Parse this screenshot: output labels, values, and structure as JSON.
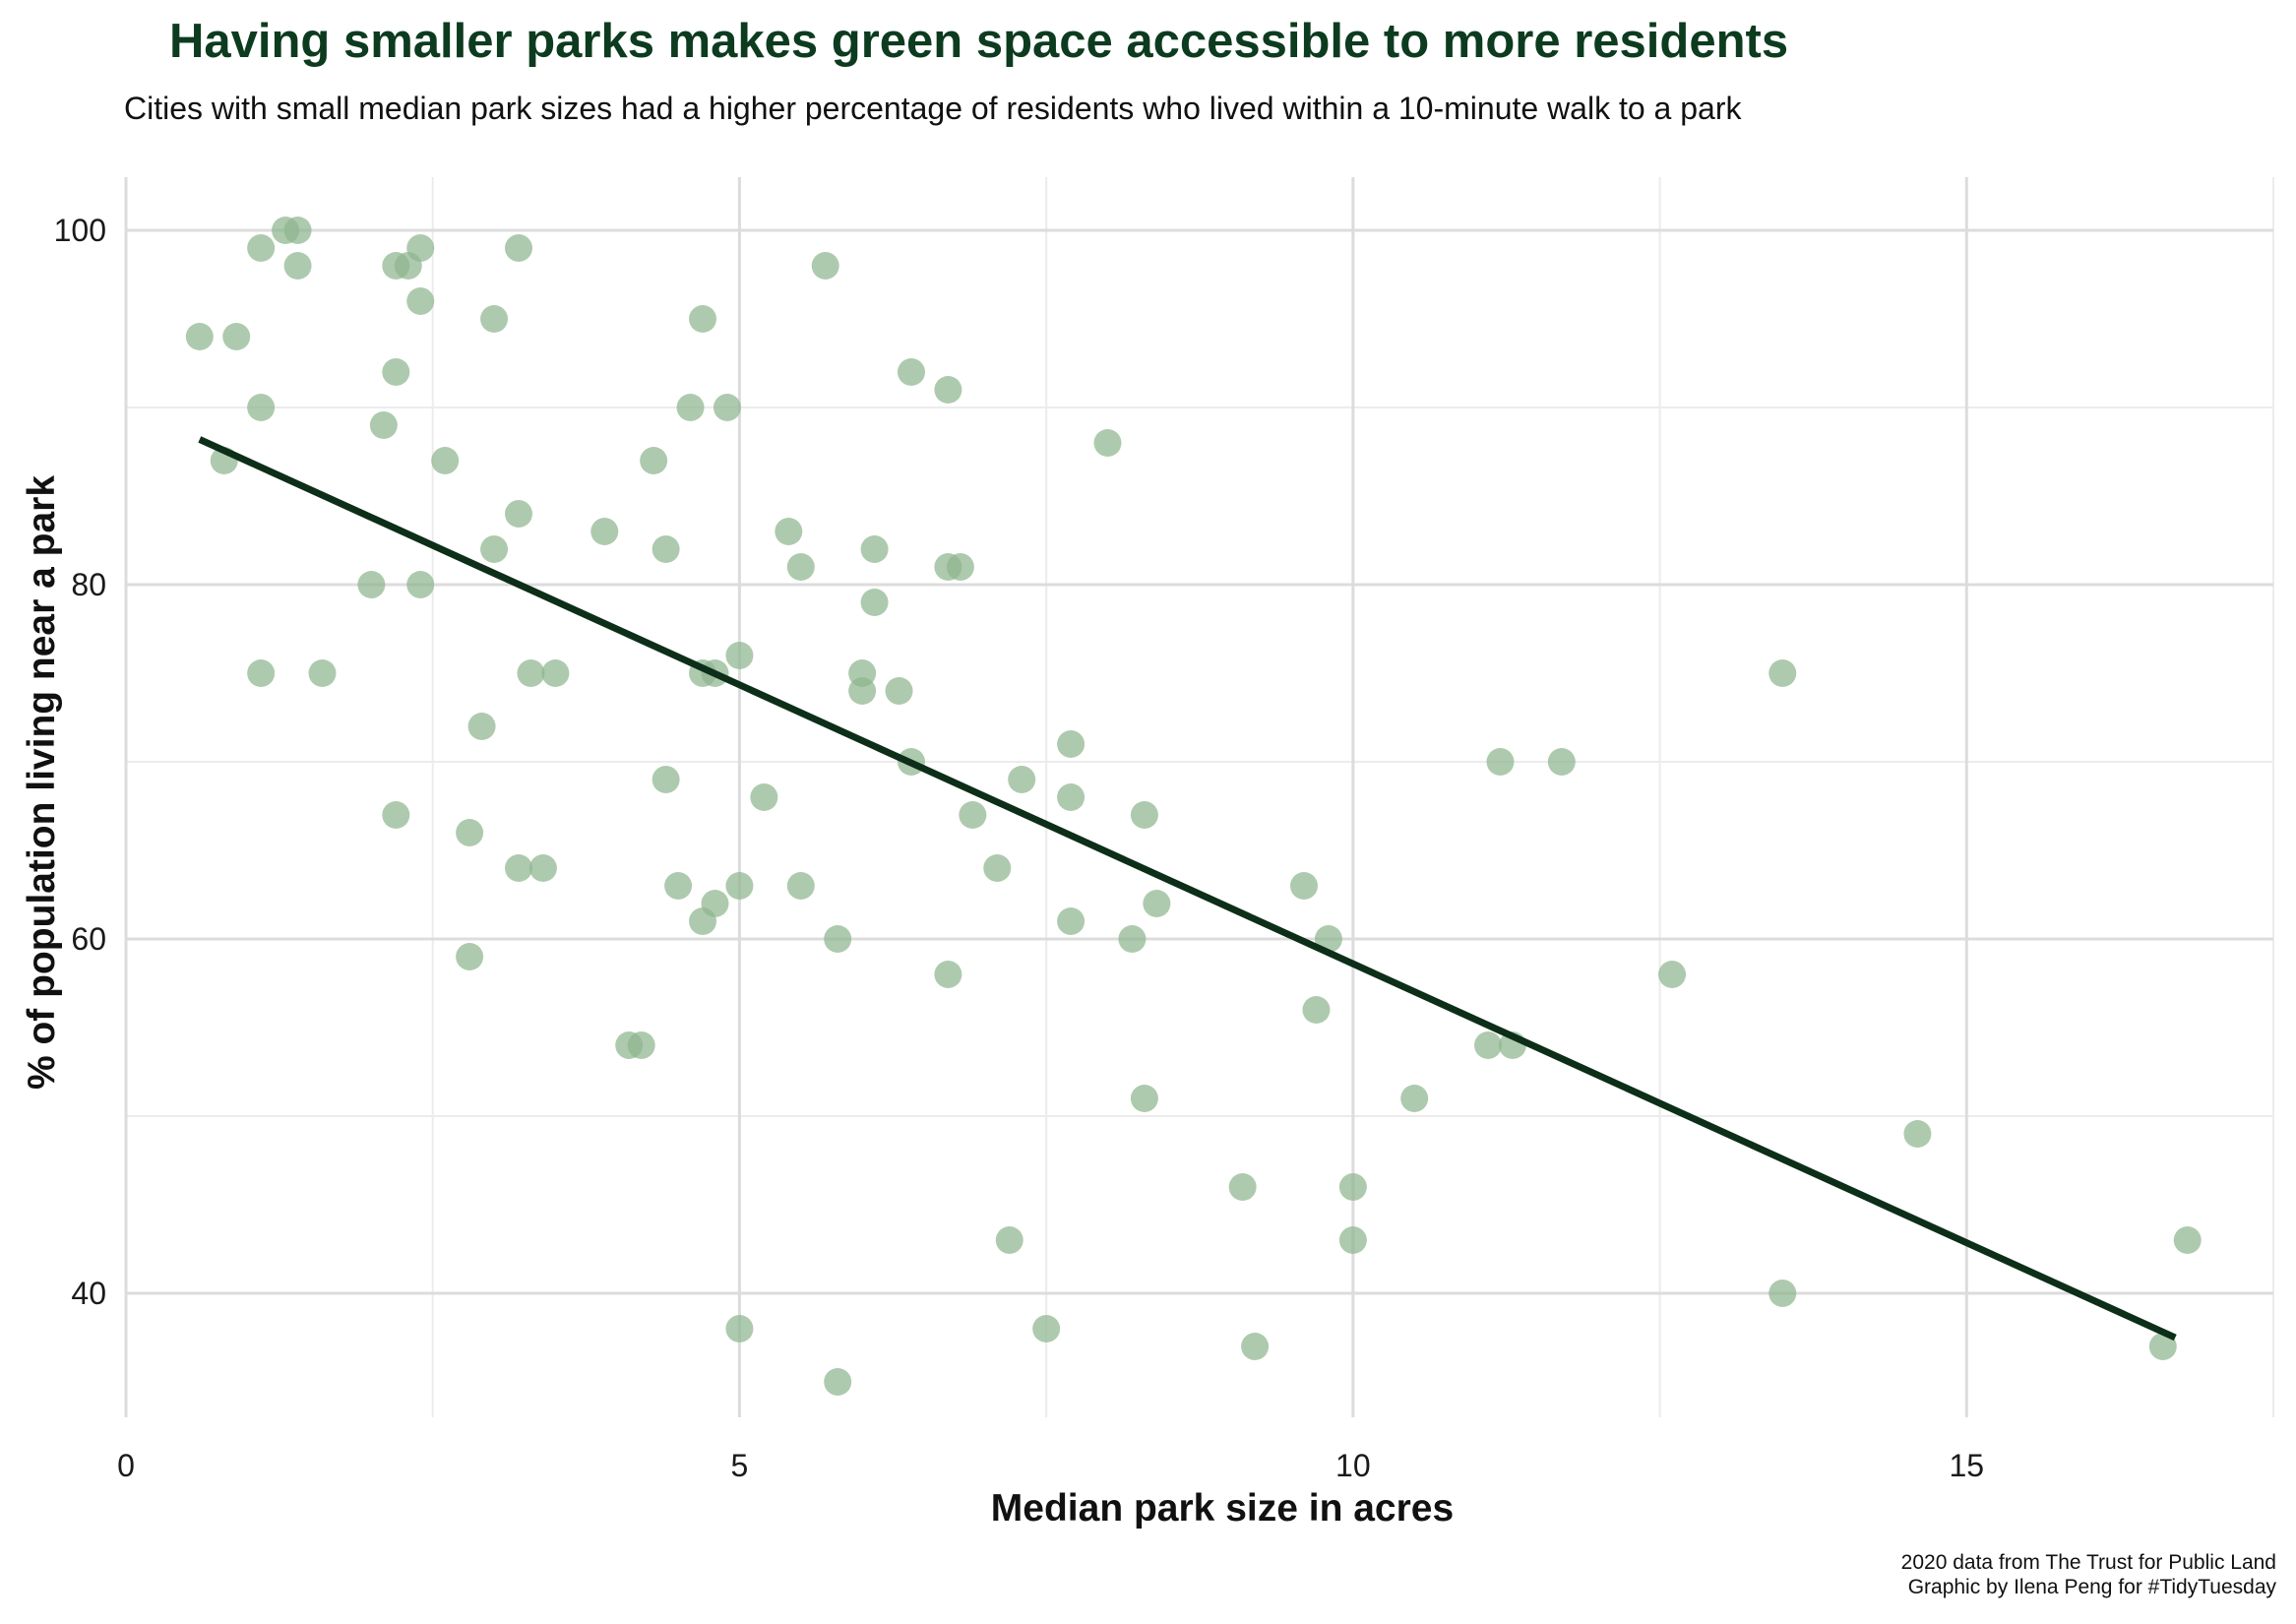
{
  "chart_data": {
    "type": "scatter",
    "title": "Having smaller parks makes green space accessible to more residents",
    "subtitle": "Cities with small median park sizes had a higher percentage of residents who lived within a 10-minute walk to a park",
    "xlabel": "Median park size in acres",
    "ylabel": "% of population living near a park",
    "xlim": [
      0,
      17.5
    ],
    "ylim": [
      33,
      103
    ],
    "x_ticks": [
      0,
      5,
      10,
      15
    ],
    "y_ticks": [
      40,
      60,
      80,
      100
    ],
    "x_tick_labels": [
      "0",
      "5",
      "10",
      "15"
    ],
    "y_tick_labels": [
      "40",
      "60",
      "80",
      "100"
    ],
    "grid": true,
    "point_color": "#8fb58f",
    "trend_color": "#0d2e18",
    "points": [
      [
        0.6,
        94
      ],
      [
        0.9,
        94
      ],
      [
        0.8,
        87
      ],
      [
        1.1,
        99
      ],
      [
        1.3,
        100
      ],
      [
        1.4,
        100
      ],
      [
        1.4,
        98
      ],
      [
        1.1,
        90
      ],
      [
        1.1,
        75
      ],
      [
        1.6,
        75
      ],
      [
        2.2,
        98
      ],
      [
        2.3,
        98
      ],
      [
        2.4,
        99
      ],
      [
        2.4,
        96
      ],
      [
        2.2,
        92
      ],
      [
        2.1,
        89
      ],
      [
        2.6,
        87
      ],
      [
        2.0,
        80
      ],
      [
        2.4,
        80
      ],
      [
        2.2,
        67
      ],
      [
        3.2,
        99
      ],
      [
        3.0,
        95
      ],
      [
        3.2,
        84
      ],
      [
        3.0,
        82
      ],
      [
        3.3,
        75
      ],
      [
        3.5,
        75
      ],
      [
        2.9,
        72
      ],
      [
        2.8,
        66
      ],
      [
        3.2,
        64
      ],
      [
        3.4,
        64
      ],
      [
        2.8,
        59
      ],
      [
        3.9,
        83
      ],
      [
        4.3,
        87
      ],
      [
        4.4,
        82
      ],
      [
        4.4,
        69
      ],
      [
        4.5,
        63
      ],
      [
        4.7,
        61
      ],
      [
        4.8,
        62
      ],
      [
        4.1,
        54
      ],
      [
        4.2,
        54
      ],
      [
        4.7,
        95
      ],
      [
        4.6,
        90
      ],
      [
        4.9,
        90
      ],
      [
        4.7,
        75
      ],
      [
        4.8,
        75
      ],
      [
        5.0,
        76
      ],
      [
        5.0,
        63
      ],
      [
        5.0,
        38
      ],
      [
        5.2,
        68
      ],
      [
        5.4,
        83
      ],
      [
        5.5,
        81
      ],
      [
        5.5,
        63
      ],
      [
        5.7,
        98
      ],
      [
        5.8,
        60
      ],
      [
        5.8,
        35
      ],
      [
        6.0,
        75
      ],
      [
        6.0,
        74
      ],
      [
        6.1,
        82
      ],
      [
        6.1,
        79
      ],
      [
        6.3,
        74
      ],
      [
        6.4,
        92
      ],
      [
        6.4,
        70
      ],
      [
        6.7,
        91
      ],
      [
        6.7,
        81
      ],
      [
        6.8,
        81
      ],
      [
        6.9,
        67
      ],
      [
        6.7,
        58
      ],
      [
        7.1,
        64
      ],
      [
        7.3,
        69
      ],
      [
        7.2,
        43
      ],
      [
        7.5,
        38
      ],
      [
        7.7,
        71
      ],
      [
        7.7,
        68
      ],
      [
        7.7,
        61
      ],
      [
        8.0,
        88
      ],
      [
        8.2,
        60
      ],
      [
        8.3,
        67
      ],
      [
        8.4,
        62
      ],
      [
        8.3,
        51
      ],
      [
        9.1,
        46
      ],
      [
        9.2,
        37
      ],
      [
        9.6,
        63
      ],
      [
        9.8,
        60
      ],
      [
        9.7,
        56
      ],
      [
        10.0,
        46
      ],
      [
        10.0,
        43
      ],
      [
        10.5,
        51
      ],
      [
        11.1,
        54
      ],
      [
        11.3,
        54
      ],
      [
        11.2,
        70
      ],
      [
        11.7,
        70
      ],
      [
        12.6,
        58
      ],
      [
        13.5,
        75
      ],
      [
        13.5,
        40
      ],
      [
        14.6,
        49
      ],
      [
        16.6,
        37
      ],
      [
        16.8,
        43
      ]
    ],
    "trend_line": {
      "x": [
        0.6,
        16.7
      ],
      "y": [
        88.2,
        37.5
      ]
    }
  },
  "caption": {
    "line1": "2020 data from The Trust for Public Land",
    "line2": "Graphic by Ilena Peng for #TidyTuesday"
  }
}
